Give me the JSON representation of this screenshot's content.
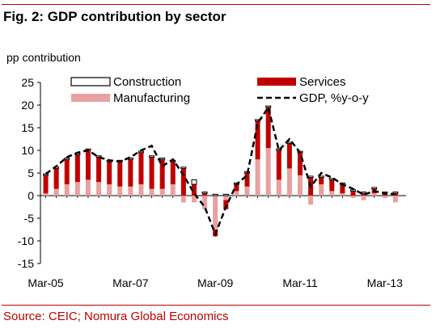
{
  "figure": {
    "title": "Fig. 2: GDP contribution by sector",
    "source": "Source: CEIC; Nomura Global Economics"
  },
  "chart_data": {
    "type": "bar",
    "stacked": true,
    "ylabel": "pp contribution",
    "ylim": [
      -15,
      25
    ],
    "yticks": [
      -15,
      -10,
      -5,
      0,
      5,
      10,
      15,
      20,
      25
    ],
    "xtick_labels": [
      "Mar-05",
      "Mar-07",
      "Mar-09",
      "Mar-11",
      "Mar-13"
    ],
    "xtick_indices": [
      0,
      8,
      16,
      24,
      32
    ],
    "x": [
      "Mar-05",
      "Jun-05",
      "Sep-05",
      "Dec-05",
      "Mar-06",
      "Jun-06",
      "Sep-06",
      "Dec-06",
      "Mar-07",
      "Jun-07",
      "Sep-07",
      "Dec-07",
      "Mar-08",
      "Jun-08",
      "Sep-08",
      "Dec-08",
      "Mar-09",
      "Jun-09",
      "Sep-09",
      "Dec-09",
      "Mar-10",
      "Jun-10",
      "Sep-10",
      "Dec-10",
      "Mar-11",
      "Jun-11",
      "Sep-11",
      "Dec-11",
      "Mar-12",
      "Jun-12",
      "Sep-12",
      "Dec-12",
      "Mar-13",
      "Jun-13"
    ],
    "legend": {
      "placement": "top"
    },
    "colors": {
      "construction_fill": "#ffffff",
      "construction_stroke": "#000000",
      "services": "#c00000",
      "manufacturing": "#e8a0a0",
      "gdp_line": "#000000"
    },
    "series": [
      {
        "name": "Construction",
        "kind": "bar",
        "values": [
          0.3,
          0.3,
          0.3,
          0.3,
          0.3,
          0.3,
          0.3,
          0.3,
          0.3,
          0.3,
          0.3,
          0.3,
          0.3,
          0.3,
          1.0,
          0.3,
          0.3,
          0.3,
          0.3,
          0.3,
          0.3,
          0.3,
          0.3,
          0.3,
          0.3,
          0.3,
          0.3,
          0.3,
          0.3,
          0.3,
          0.3,
          0.3,
          0.3,
          0.3
        ]
      },
      {
        "name": "Services",
        "kind": "bar",
        "values": [
          4.0,
          4.5,
          5.5,
          6.0,
          6.5,
          5.5,
          5.0,
          5.5,
          6.0,
          7.0,
          7.0,
          6.5,
          5.0,
          6.0,
          2.5,
          0.5,
          -1.5,
          -2.0,
          1.5,
          3.0,
          8.5,
          9.0,
          6.5,
          5.5,
          5.0,
          4.0,
          1.5,
          2.5,
          2.0,
          1.0,
          0.5,
          1.0,
          0.5,
          0.5
        ]
      },
      {
        "name": "Manufacturing",
        "kind": "bar",
        "values": [
          0.5,
          1.5,
          2.5,
          3.0,
          3.5,
          3.0,
          2.5,
          2.0,
          2.0,
          2.5,
          1.5,
          1.5,
          2.5,
          -1.5,
          -1.5,
          -3.0,
          -7.5,
          -1.0,
          1.0,
          2.0,
          8.0,
          10.5,
          3.5,
          6.0,
          4.5,
          -2.0,
          2.5,
          1.0,
          0.5,
          -0.5,
          -1.0,
          0.5,
          -0.5,
          -1.5
        ]
      },
      {
        "name": "GDP, %y-o-y",
        "kind": "line",
        "values": [
          4.8,
          6.5,
          8.5,
          9.5,
          10.0,
          8.5,
          7.8,
          7.5,
          8.5,
          10.0,
          11.0,
          6.5,
          8.0,
          4.5,
          0.5,
          -2.5,
          -8.5,
          -2.5,
          2.5,
          4.5,
          16.0,
          19.5,
          10.0,
          12.5,
          9.5,
          2.0,
          5.0,
          4.0,
          2.5,
          1.5,
          0.2,
          1.0,
          0.5,
          0.3
        ]
      }
    ]
  }
}
